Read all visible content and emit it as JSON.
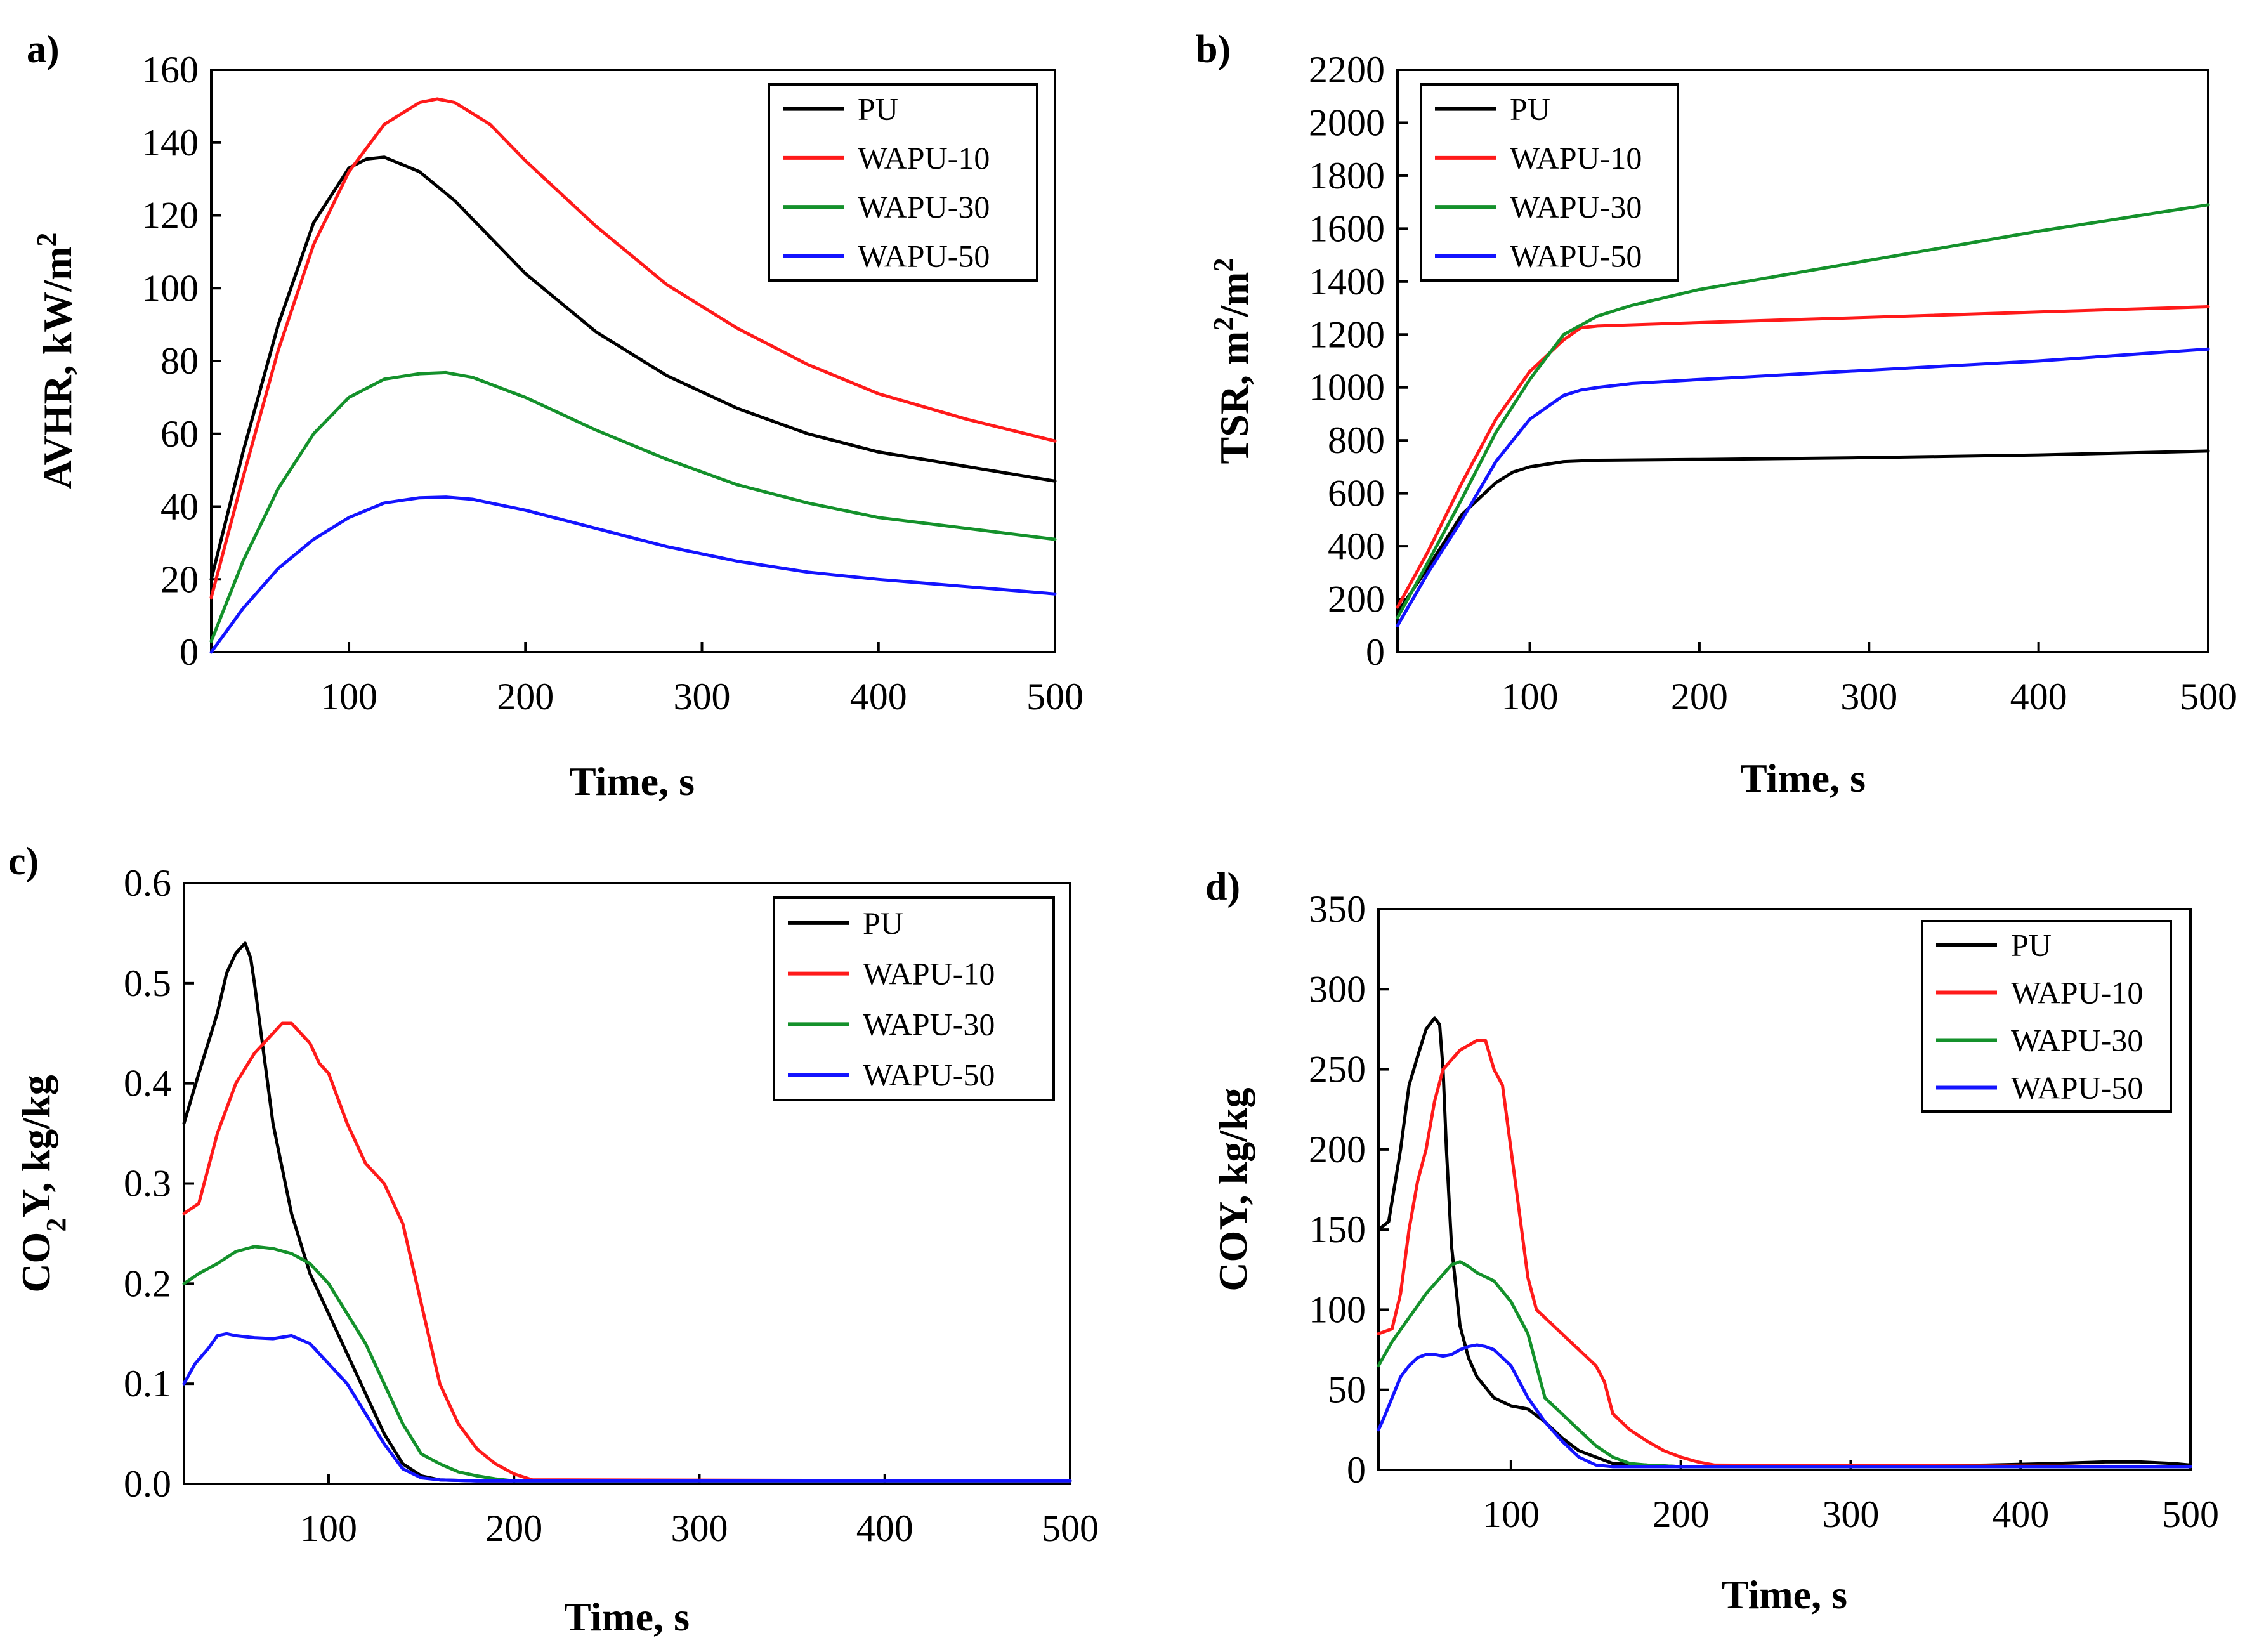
{
  "colors": {
    "PU": "#000000",
    "WAPU-10": "#ff1a1a",
    "WAPU-30": "#14912b",
    "WAPU-50": "#1414ff"
  },
  "chart_data": [
    {
      "id": "a",
      "panel_label": "a)",
      "type": "line",
      "xlabel": "Time, s",
      "ylabel": "AVHR, kW/m",
      "ylabel_sup": "2",
      "xlim": [
        22,
        500
      ],
      "ylim": [
        0,
        160
      ],
      "xticks": [
        100,
        200,
        300,
        400,
        500
      ],
      "yticks": [
        0,
        20,
        40,
        60,
        80,
        100,
        120,
        140,
        160
      ],
      "ytick_labels": [
        "0",
        "20",
        "40",
        "60",
        "80",
        "100",
        "120",
        "140",
        "160"
      ],
      "legend": "top-right",
      "series": [
        {
          "name": "PU",
          "x": [
            22,
            40,
            60,
            80,
            100,
            110,
            120,
            140,
            160,
            200,
            240,
            280,
            320,
            360,
            400,
            450,
            500
          ],
          "y": [
            20,
            55,
            90,
            118,
            133,
            135.5,
            136,
            132,
            124,
            104,
            88,
            76,
            67,
            60,
            55,
            51,
            47
          ]
        },
        {
          "name": "WAPU-10",
          "x": [
            22,
            40,
            60,
            80,
            100,
            120,
            140,
            150,
            160,
            180,
            200,
            240,
            280,
            320,
            360,
            400,
            450,
            500
          ],
          "y": [
            15,
            48,
            83,
            112,
            132,
            145,
            151,
            152,
            151,
            145,
            135,
            117,
            101,
            89,
            79,
            71,
            64,
            58
          ]
        },
        {
          "name": "WAPU-30",
          "x": [
            22,
            40,
            60,
            80,
            100,
            120,
            140,
            155,
            170,
            200,
            240,
            280,
            320,
            360,
            400,
            450,
            500
          ],
          "y": [
            3,
            25,
            45,
            60,
            70,
            75,
            76.5,
            76.8,
            75.5,
            70,
            61,
            53,
            46,
            41,
            37,
            34,
            31
          ]
        },
        {
          "name": "WAPU-50",
          "x": [
            22,
            40,
            60,
            80,
            100,
            120,
            140,
            155,
            170,
            200,
            240,
            280,
            320,
            360,
            400,
            450,
            500
          ],
          "y": [
            0,
            12,
            23,
            31,
            37,
            41,
            42.4,
            42.6,
            42,
            39,
            34,
            29,
            25,
            22,
            20,
            18,
            16
          ]
        }
      ]
    },
    {
      "id": "b",
      "panel_label": "b)",
      "type": "line",
      "xlabel": "Time, s",
      "ylabel": "TSR, m",
      "ylabel_sup": "2",
      "ylabel_mid": "/m",
      "ylabel_sup2": "2",
      "xlim": [
        22,
        500
      ],
      "ylim": [
        0,
        2200
      ],
      "xticks": [
        100,
        200,
        300,
        400,
        500
      ],
      "yticks": [
        0,
        200,
        400,
        600,
        800,
        1000,
        1200,
        1400,
        1600,
        1800,
        2000,
        2200
      ],
      "ytick_labels": [
        "0",
        "200",
        "400",
        "600",
        "800",
        "1000",
        "1200",
        "1400",
        "1600",
        "1800",
        "2000",
        "2200"
      ],
      "legend": "top-left",
      "series": [
        {
          "name": "PU",
          "x": [
            22,
            40,
            60,
            80,
            90,
            100,
            120,
            140,
            200,
            300,
            400,
            500
          ],
          "y": [
            150,
            320,
            520,
            640,
            680,
            700,
            720,
            725,
            728,
            735,
            745,
            760
          ]
        },
        {
          "name": "WAPU-10",
          "x": [
            22,
            40,
            60,
            80,
            100,
            120,
            130,
            140,
            200,
            300,
            400,
            500
          ],
          "y": [
            170,
            380,
            640,
            880,
            1060,
            1180,
            1225,
            1232,
            1245,
            1265,
            1285,
            1305
          ]
        },
        {
          "name": "WAPU-30",
          "x": [
            22,
            40,
            60,
            80,
            100,
            120,
            140,
            160,
            200,
            300,
            400,
            500
          ],
          "y": [
            130,
            340,
            580,
            830,
            1030,
            1200,
            1270,
            1310,
            1370,
            1480,
            1590,
            1690
          ]
        },
        {
          "name": "WAPU-50",
          "x": [
            22,
            40,
            60,
            80,
            100,
            120,
            130,
            140,
            160,
            200,
            300,
            400,
            500
          ],
          "y": [
            100,
            300,
            500,
            720,
            880,
            970,
            990,
            1000,
            1015,
            1030,
            1065,
            1100,
            1145
          ]
        }
      ]
    },
    {
      "id": "c",
      "panel_label": "c)",
      "type": "line",
      "xlabel": "Time, s",
      "ylabel_pre": "CO",
      "ylabel_sub": "2",
      "ylabel": "Y, kg/kg",
      "xlim": [
        22,
        500
      ],
      "ylim": [
        0,
        0.6
      ],
      "xticks": [
        100,
        200,
        300,
        400,
        500
      ],
      "yticks": [
        0,
        0.1,
        0.2,
        0.3,
        0.4,
        0.5,
        0.6
      ],
      "ytick_labels": [
        "0.0",
        "0.1",
        "0.2",
        "0.3",
        "0.4",
        "0.5",
        "0.6"
      ],
      "legend": "top-right",
      "series": [
        {
          "name": "PU",
          "x": [
            22,
            30,
            40,
            45,
            50,
            55,
            58,
            60,
            65,
            70,
            80,
            90,
            100,
            110,
            120,
            130,
            140,
            150,
            160,
            180,
            200,
            500
          ],
          "y": [
            0.36,
            0.41,
            0.47,
            0.51,
            0.53,
            0.54,
            0.525,
            0.5,
            0.43,
            0.36,
            0.27,
            0.21,
            0.17,
            0.13,
            0.09,
            0.05,
            0.02,
            0.008,
            0.004,
            0.003,
            0.003,
            0.003
          ]
        },
        {
          "name": "WAPU-10",
          "x": [
            22,
            30,
            40,
            50,
            60,
            70,
            75,
            80,
            90,
            95,
            100,
            110,
            120,
            130,
            135,
            140,
            150,
            160,
            170,
            180,
            190,
            200,
            210,
            500
          ],
          "y": [
            0.27,
            0.28,
            0.35,
            0.4,
            0.43,
            0.45,
            0.46,
            0.46,
            0.44,
            0.42,
            0.41,
            0.36,
            0.32,
            0.3,
            0.28,
            0.26,
            0.18,
            0.1,
            0.06,
            0.035,
            0.02,
            0.01,
            0.004,
            0.003
          ]
        },
        {
          "name": "WAPU-30",
          "x": [
            22,
            30,
            40,
            50,
            60,
            70,
            80,
            90,
            100,
            110,
            120,
            130,
            140,
            150,
            160,
            170,
            180,
            190,
            200,
            500
          ],
          "y": [
            0.2,
            0.21,
            0.22,
            0.232,
            0.237,
            0.235,
            0.23,
            0.22,
            0.2,
            0.17,
            0.14,
            0.1,
            0.06,
            0.03,
            0.02,
            0.012,
            0.008,
            0.005,
            0.003,
            0.003
          ]
        },
        {
          "name": "WAPU-50",
          "x": [
            22,
            28,
            35,
            40,
            45,
            50,
            60,
            70,
            80,
            90,
            100,
            110,
            120,
            130,
            140,
            150,
            160,
            180,
            500
          ],
          "y": [
            0.1,
            0.12,
            0.135,
            0.148,
            0.15,
            0.148,
            0.146,
            0.145,
            0.148,
            0.14,
            0.12,
            0.1,
            0.07,
            0.04,
            0.015,
            0.006,
            0.004,
            0.003,
            0.003
          ]
        }
      ]
    },
    {
      "id": "d",
      "panel_label": "d)",
      "type": "line",
      "xlabel": "Time, s",
      "ylabel": "COY, kg/kg",
      "xlim": [
        22,
        500
      ],
      "ylim": [
        0,
        350
      ],
      "xticks": [
        100,
        200,
        300,
        400,
        500
      ],
      "yticks": [
        0,
        50,
        100,
        150,
        200,
        250,
        300,
        350
      ],
      "ytick_labels": [
        "0",
        "50",
        "100",
        "150",
        "200",
        "250",
        "300",
        "350"
      ],
      "legend": "top-right",
      "series": [
        {
          "name": "PU",
          "x": [
            22,
            28,
            35,
            40,
            45,
            50,
            55,
            58,
            60,
            62,
            65,
            70,
            75,
            80,
            90,
            100,
            110,
            120,
            130,
            140,
            160,
            200,
            300,
            380,
            420,
            450,
            470,
            490,
            500
          ],
          "y": [
            150,
            155,
            200,
            240,
            258,
            275,
            282,
            278,
            250,
            200,
            140,
            90,
            70,
            58,
            45,
            40,
            38,
            30,
            20,
            12,
            4,
            2,
            2,
            3,
            4,
            5,
            5,
            4,
            3
          ]
        },
        {
          "name": "WAPU-10",
          "x": [
            22,
            30,
            35,
            40,
            45,
            50,
            55,
            60,
            70,
            80,
            85,
            90,
            95,
            100,
            105,
            110,
            115,
            120,
            130,
            140,
            150,
            155,
            160,
            170,
            180,
            190,
            200,
            210,
            220,
            500
          ],
          "y": [
            85,
            88,
            110,
            150,
            180,
            200,
            230,
            250,
            262,
            268,
            268,
            250,
            240,
            200,
            160,
            120,
            100,
            95,
            85,
            75,
            65,
            55,
            35,
            25,
            18,
            12,
            8,
            5,
            3,
            2
          ]
        },
        {
          "name": "WAPU-30",
          "x": [
            22,
            30,
            40,
            50,
            60,
            65,
            70,
            75,
            80,
            90,
            100,
            110,
            115,
            120,
            130,
            140,
            150,
            160,
            170,
            180,
            200,
            220,
            500
          ],
          "y": [
            65,
            80,
            95,
            110,
            122,
            128,
            130,
            127,
            123,
            118,
            105,
            85,
            65,
            45,
            35,
            25,
            15,
            8,
            4,
            3,
            2,
            2,
            2
          ]
        },
        {
          "name": "WAPU-50",
          "x": [
            22,
            25,
            30,
            35,
            40,
            45,
            50,
            55,
            60,
            65,
            70,
            75,
            80,
            85,
            90,
            100,
            110,
            120,
            130,
            140,
            150,
            160,
            500
          ],
          "y": [
            25,
            32,
            45,
            58,
            65,
            70,
            72,
            72,
            71,
            72,
            75,
            77,
            78,
            77,
            75,
            65,
            45,
            30,
            18,
            8,
            3,
            2,
            2
          ]
        }
      ]
    }
  ]
}
